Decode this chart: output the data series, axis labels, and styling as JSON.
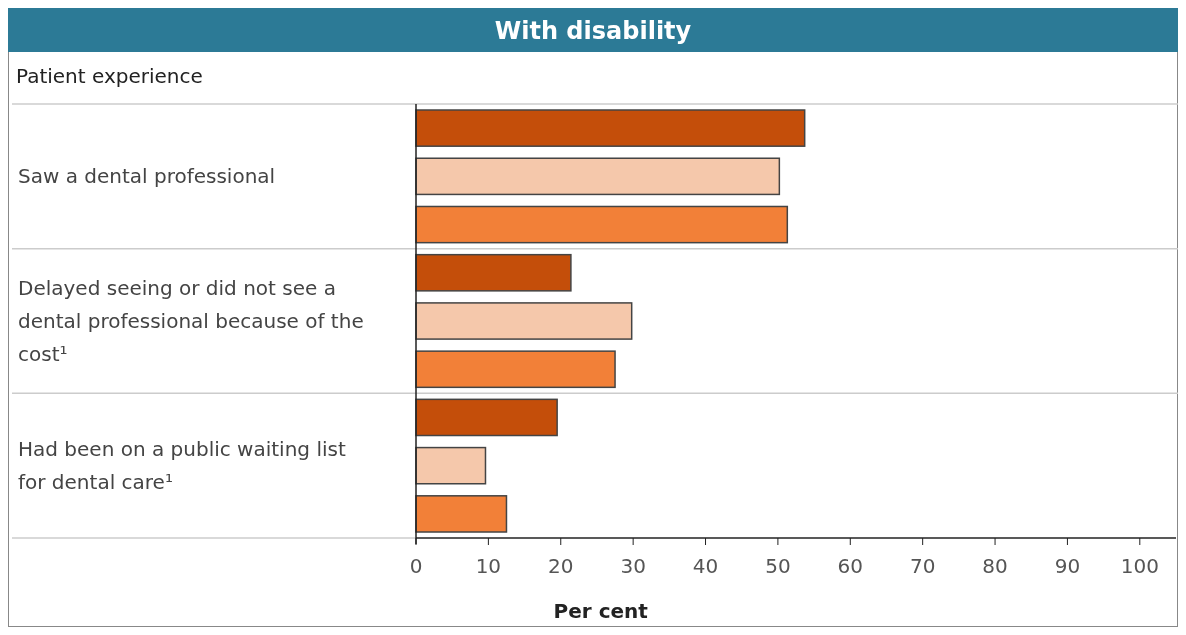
{
  "chart_data": {
    "type": "bar",
    "orientation": "horizontal",
    "title": "With disability",
    "ylabel": "Patient experience",
    "xlabel": "Per cent",
    "categories": [
      "Saw a dental professional",
      "Delayed seeing or did not see a dental professional because of the cost¹",
      "Had been on a public waiting list for dental care¹"
    ],
    "series": [
      {
        "color": "#c44e0a",
        "values": [
          53.7,
          21.4,
          19.5
        ]
      },
      {
        "color": "#f5c8ab",
        "values": [
          50.2,
          29.8,
          9.6
        ]
      },
      {
        "color": "#f28038",
        "values": [
          51.3,
          27.5,
          12.5
        ]
      }
    ],
    "xlim": [
      0,
      105
    ],
    "xticks": [
      0,
      10,
      20,
      30,
      40,
      50,
      60,
      70,
      80,
      90,
      100
    ],
    "grid": false
  }
}
